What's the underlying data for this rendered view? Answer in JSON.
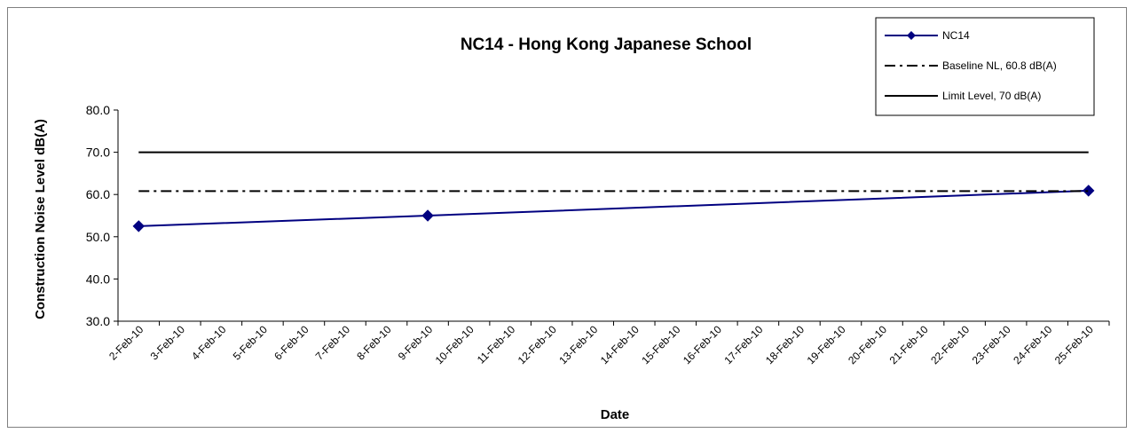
{
  "chart_data": {
    "type": "line",
    "title": "NC14 - Hong Kong Japanese School",
    "xlabel": "Date",
    "ylabel": "Construction Noise Level  dB(A)",
    "ylim": [
      30,
      80
    ],
    "yticks": [
      "30.0",
      "40.0",
      "50.0",
      "60.0",
      "70.0",
      "80.0"
    ],
    "categories": [
      "2-Feb-10",
      "3-Feb-10",
      "4-Feb-10",
      "5-Feb-10",
      "6-Feb-10",
      "7-Feb-10",
      "8-Feb-10",
      "9-Feb-10",
      "10-Feb-10",
      "11-Feb-10",
      "12-Feb-10",
      "13-Feb-10",
      "14-Feb-10",
      "15-Feb-10",
      "16-Feb-10",
      "17-Feb-10",
      "18-Feb-10",
      "19-Feb-10",
      "20-Feb-10",
      "21-Feb-10",
      "22-Feb-10",
      "23-Feb-10",
      "24-Feb-10",
      "25-Feb-10"
    ],
    "grid": false,
    "legend_position": "top-right",
    "series": [
      {
        "name": "NC14",
        "color": "#000080",
        "style": "solid-diamond-markers",
        "points": [
          {
            "x": "2-Feb-10",
            "y": 52.5
          },
          {
            "x": "9-Feb-10",
            "y": 55.0
          },
          {
            "x": "25-Feb-10",
            "y": 60.9
          }
        ]
      },
      {
        "name": "Baseline NL, 60.8 dB(A)",
        "color": "#000000",
        "style": "dash-dot",
        "points": [
          {
            "x": "2-Feb-10",
            "y": 60.8
          },
          {
            "x": "25-Feb-10",
            "y": 60.8
          }
        ]
      },
      {
        "name": "Limit Level, 70 dB(A)",
        "color": "#000000",
        "style": "solid",
        "points": [
          {
            "x": "2-Feb-10",
            "y": 70
          },
          {
            "x": "25-Feb-10",
            "y": 70
          }
        ]
      }
    ]
  }
}
